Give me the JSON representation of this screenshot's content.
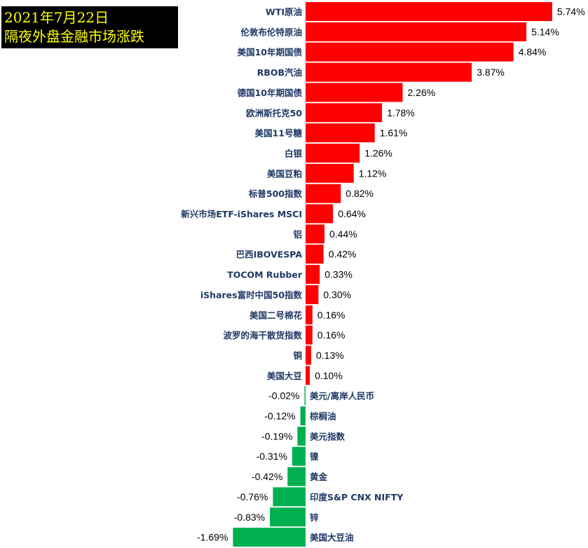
{
  "header": {
    "line1": "2021年7月22日",
    "line2": "隔夜外盘金融市场涨跌"
  },
  "colors": {
    "positive": "#FF0000",
    "negative": "#00B050",
    "label": "#1F3864",
    "title_bg": "#000000",
    "title_text": "#FFFF00"
  },
  "chart_data": {
    "type": "bar",
    "orientation": "horizontal",
    "title": "2021年7月22日 隔夜外盘金融市场涨跌",
    "unit": "%",
    "categories": [
      "WTI原油",
      "伦敦布伦特原油",
      "美国10年期国债",
      "RBOB汽油",
      "德国10年期国债",
      "欧洲斯托克50",
      "美国11号糖",
      "白银",
      "美国豆粕",
      "标普500指数",
      "新兴市场ETF-iShares MSCI",
      "铝",
      "巴西IBOVESPA",
      "TOCOM Rubber",
      "iShares富时中国50指数",
      "美国二号棉花",
      "波罗的海干散货指数",
      "铜",
      "美国大豆",
      "美元/离岸人民币",
      "棕榈油",
      "美元指数",
      "镍",
      "黄金",
      "印度S&P CNX NIFTY",
      "锌",
      "美国大豆油"
    ],
    "values": [
      5.74,
      5.14,
      4.84,
      3.87,
      2.26,
      1.78,
      1.61,
      1.26,
      1.12,
      0.82,
      0.64,
      0.44,
      0.42,
      0.33,
      0.3,
      0.16,
      0.16,
      0.13,
      0.1,
      -0.02,
      -0.12,
      -0.19,
      -0.31,
      -0.42,
      -0.76,
      -0.83,
      -1.69
    ],
    "labels": [
      "5.74%",
      "5.14%",
      "4.84%",
      "3.87%",
      "2.26%",
      "1.78%",
      "1.61%",
      "1.26%",
      "1.12%",
      "0.82%",
      "0.64%",
      "0.44%",
      "0.42%",
      "0.33%",
      "0.30%",
      "0.16%",
      "0.16%",
      "0.13%",
      "0.10%",
      "-0.02%",
      "-0.12%",
      "-0.19%",
      "-0.31%",
      "-0.42%",
      "-0.76%",
      "-0.83%",
      "-1.69%"
    ],
    "grid": false,
    "legend": "none"
  }
}
